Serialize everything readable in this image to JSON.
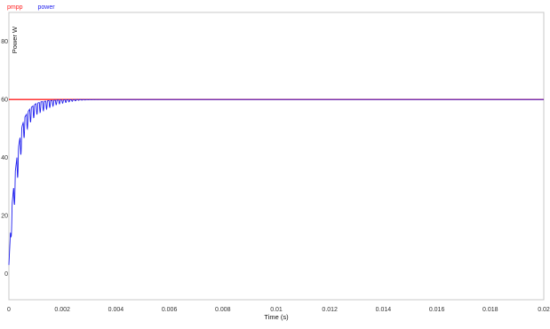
{
  "colors": {
    "pmpp": "#ff2020",
    "power": "#2020ee",
    "grid": "#bdbdbd",
    "frame": "#c8c8c8"
  },
  "chart_data": {
    "type": "line",
    "title": "",
    "xlabel": "Time (s)",
    "ylabel": "Power W",
    "xlim": [
      0,
      0.02
    ],
    "ylim": [
      -9,
      90
    ],
    "x_ticks": [
      0,
      0.002,
      0.004,
      0.006,
      0.008,
      0.01,
      0.012,
      0.014,
      0.016,
      0.018,
      0.02
    ],
    "x_tick_labels": [
      "0",
      "0.002",
      "0.004",
      "0.006",
      "0.008",
      "0.01",
      "0.012",
      "0.014",
      "0.016",
      "0.018",
      "0.02"
    ],
    "y_ticks": [
      0,
      20,
      40,
      60,
      80
    ],
    "y_tick_labels": [
      "0",
      "20",
      "40",
      "60",
      "80"
    ],
    "grid": true,
    "legend_position": "top-left",
    "series": [
      {
        "name": "pmpp",
        "color": "#ff2020",
        "x": [
          0,
          0.02
        ],
        "y": [
          60,
          60
        ]
      },
      {
        "name": "power",
        "color": "#2020ee",
        "x": [
          0,
          0.0001,
          0.0002,
          0.0003,
          0.0004,
          0.0005,
          0.0006,
          0.0008,
          0.001,
          0.0012,
          0.0015,
          0.0018,
          0.0022,
          0.0026,
          0.003,
          0.0035,
          0.02
        ],
        "y": [
          3,
          22,
          32,
          40,
          46,
          51,
          54,
          57,
          58.5,
          59.2,
          59.6,
          59.8,
          59.9,
          60,
          60,
          60,
          60
        ],
        "oscillation_amplitude": [
          0,
          8,
          9,
          9,
          8,
          7,
          6,
          5,
          4,
          3.5,
          2.5,
          1.5,
          0.8,
          0.3,
          0.1,
          0,
          0
        ]
      }
    ]
  }
}
